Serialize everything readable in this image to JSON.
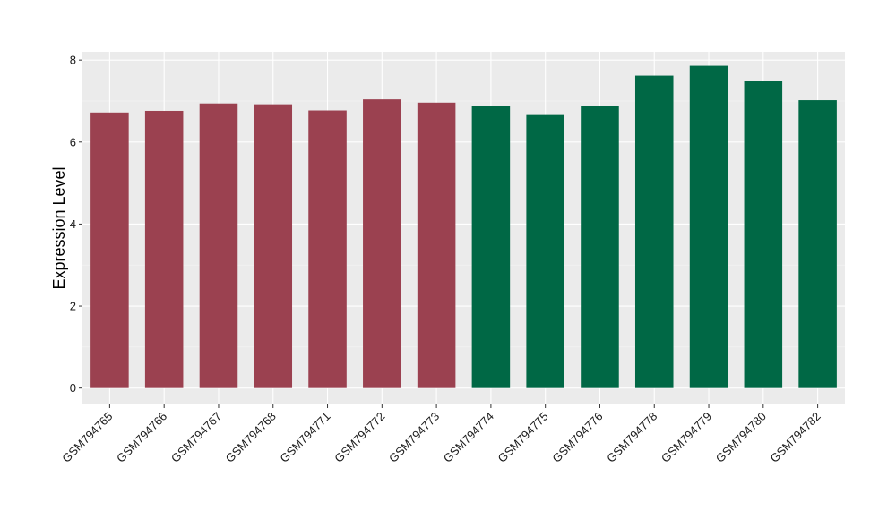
{
  "chart_data": {
    "type": "bar",
    "title": "",
    "xlabel": "",
    "ylabel": "Expression Level",
    "ylim": [
      -0.4,
      8.2
    ],
    "yticks": [
      0,
      2,
      4,
      6,
      8
    ],
    "grid": true,
    "background": "#ebebeb",
    "categories": [
      "GSM794765",
      "GSM794766",
      "GSM794767",
      "GSM794768",
      "GSM794771",
      "GSM794772",
      "GSM794773",
      "GSM794774",
      "GSM794775",
      "GSM794776",
      "GSM794778",
      "GSM794779",
      "GSM794780",
      "GSM794782"
    ],
    "values": [
      6.72,
      6.76,
      6.94,
      6.92,
      6.77,
      7.04,
      6.96,
      6.89,
      6.68,
      6.89,
      7.62,
      7.86,
      7.49,
      7.02
    ],
    "colors": [
      "#9b4150",
      "#9b4150",
      "#9b4150",
      "#9b4150",
      "#9b4150",
      "#9b4150",
      "#9b4150",
      "#006845",
      "#006845",
      "#006845",
      "#006845",
      "#006845",
      "#006845",
      "#006845"
    ]
  }
}
